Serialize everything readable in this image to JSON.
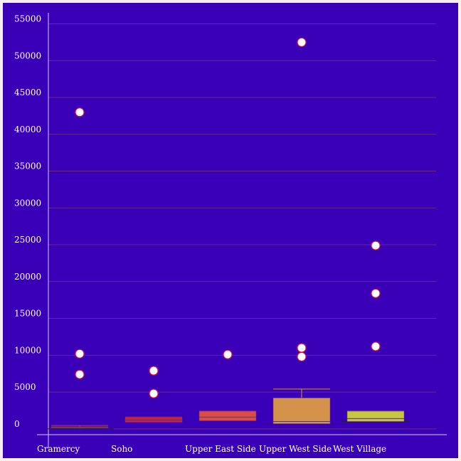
{
  "chart_data": {
    "type": "box",
    "title": "",
    "xlabel": "",
    "ylabel": "",
    "ylim": [
      -500,
      56500
    ],
    "yticks": [
      0,
      5000,
      10000,
      15000,
      20000,
      25000,
      30000,
      35000,
      40000,
      45000,
      50000,
      55000
    ],
    "ytick_labels": [
      "0",
      "5000",
      "10000",
      "15000",
      "20000",
      "25000",
      "30000",
      "35000",
      "40000",
      "45000",
      "50000",
      "55000"
    ],
    "grid": true,
    "background": "#3a00b8",
    "categories": [
      "Gramercy",
      "Soho",
      "Upper East Side",
      "Upper West Side",
      "West Village"
    ],
    "boxes": [
      {
        "name": "Gramercy",
        "color": "#b03a6e",
        "whisker_low": 0,
        "q1": 100,
        "median": 200,
        "q3": 300,
        "whisker_high": 450,
        "outliers": [
          43000,
          10200,
          7400
        ]
      },
      {
        "name": "Soho",
        "color": "#d4184e",
        "whisker_low": 900,
        "q1": 900,
        "median": 1200,
        "q3": 1600,
        "whisker_high": 1600,
        "outliers": [
          7900,
          4800
        ]
      },
      {
        "name": "Upper East Side",
        "color": "#e04a4c",
        "whisker_low": 1100,
        "q1": 1100,
        "median": 1600,
        "q3": 2400,
        "whisker_high": 2400,
        "outliers": [
          10100
        ]
      },
      {
        "name": "Upper West Side",
        "color": "#d4924a",
        "whisker_low": 700,
        "q1": 700,
        "median": 1000,
        "q3": 4200,
        "whisker_high": 5400,
        "outliers": [
          52500,
          11000,
          9800
        ]
      },
      {
        "name": "West Village",
        "color": "#c6c640",
        "whisker_low": 1000,
        "q1": 1000,
        "median": 1400,
        "q3": 2400,
        "whisker_high": 2400,
        "outliers": [
          24900,
          18400,
          11200
        ]
      }
    ]
  }
}
